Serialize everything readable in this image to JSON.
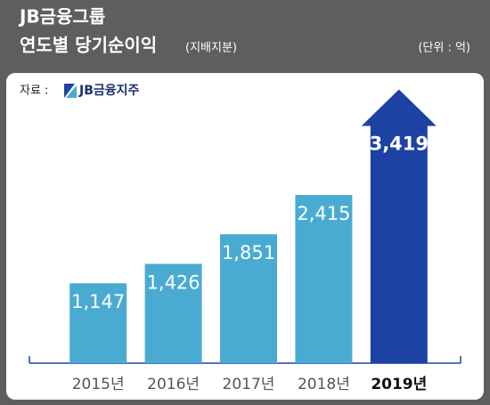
{
  "chart_data": {
    "type": "bar",
    "title": "JB금융그룹",
    "subtitle": "연도별 당기순이익",
    "subtitle_note": "(지배지분)",
    "unit": "(단위 : 억)",
    "source_label": "자료 :",
    "source": "JB금융지주",
    "categories": [
      "2015년",
      "2016년",
      "2017년",
      "2018년",
      "2019년"
    ],
    "values": [
      1147,
      1426,
      1851,
      2415,
      3419
    ],
    "value_labels": [
      "1,147",
      "1,426",
      "1,851",
      "2,415",
      "3,419"
    ],
    "colors": [
      "#4aabd2",
      "#4aabd2",
      "#4aabd2",
      "#4aabd2",
      "#1c43a3"
    ],
    "highlight": 4,
    "ylim": [
      0,
      4000
    ]
  }
}
